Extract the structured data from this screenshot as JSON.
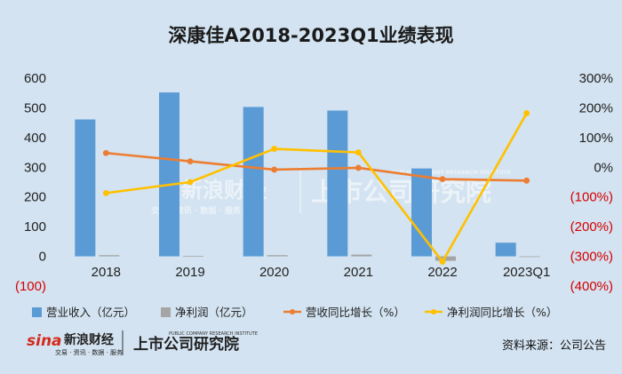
{
  "colors": {
    "background": "#d3e3f1",
    "revenue_bar": "#5b9bd5",
    "profit_bar": "#a5a5a5",
    "revenue_growth_line": "#ed7d31",
    "profit_growth_line": "#ffc000",
    "negative_tick": "#d40000"
  },
  "chart_data": {
    "type": "bar",
    "title": "深康佳A2018-2023Q1业绩表现",
    "categories": [
      "2018",
      "2019",
      "2020",
      "2021",
      "2022",
      "2023Q1"
    ],
    "series": [
      {
        "name": "营业收入（亿元）",
        "kind": "bar",
        "axis": "left",
        "values": [
          461,
          552,
          503,
          491,
          296,
          46
        ]
      },
      {
        "name": "净利润（亿元）",
        "kind": "bar",
        "axis": "left",
        "values": [
          4,
          1,
          4,
          6,
          -15,
          0
        ]
      },
      {
        "name": "营收同比增长（%）",
        "kind": "line",
        "axis": "right",
        "values": [
          48,
          20,
          -8,
          -2,
          -40,
          -45
        ]
      },
      {
        "name": "净利润同比增长（%）",
        "kind": "line",
        "axis": "right",
        "values": [
          -87,
          -50,
          62,
          50,
          -318,
          182
        ]
      }
    ],
    "left_axis": {
      "ylim": [
        -100,
        600
      ],
      "ticks": [
        600,
        500,
        400,
        300,
        200,
        100,
        0,
        -100
      ],
      "tick_labels": [
        "600",
        "500",
        "400",
        "300",
        "200",
        "100",
        "0",
        "(100)"
      ]
    },
    "right_axis": {
      "ylim": [
        -400,
        300
      ],
      "ticks": [
        300,
        200,
        100,
        0,
        -100,
        -200,
        -300,
        -400
      ],
      "tick_labels": [
        "300%",
        "200%",
        "100%",
        "0%",
        "(100%)",
        "(200%)",
        "(300%)",
        "(400%)"
      ]
    },
    "legend_position": "bottom",
    "grid": false
  },
  "watermark": {
    "brand_cn": "新浪财经",
    "brand_sub": "交易 · 资讯 · 数据 · 服务",
    "institute": "上市公司研究院",
    "institute_en": "PUBLIC COMPANY RESEARCH INSTITUTE"
  },
  "footer": {
    "logo_sina": "sina",
    "brand_cn": "新浪财经",
    "brand_sub": "交易 · 资讯 · 数据 · 服务",
    "institute": "上市公司研究院",
    "institute_en": "PUBLIC COMPANY RESEARCH INSTITUTE",
    "source": "资料来源：公司公告"
  }
}
